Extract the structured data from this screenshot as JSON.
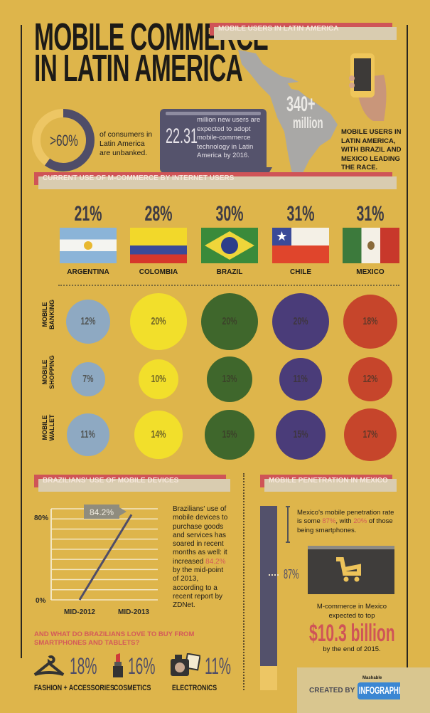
{
  "title": {
    "line1": "MOBILE COMMERCE",
    "line2": "IN LATIN AMERICA"
  },
  "colors": {
    "background": "#deb54b",
    "accent_red": "#cf5457",
    "dark": "#4f4d68"
  },
  "mobile_users": {
    "header": "MOBILE USERS IN LATIN AMERICA",
    "unbanked_value": ">60%",
    "unbanked_fraction": 0.6,
    "unbanked_text": "of consumers in Latin America are unbanked.",
    "new_users_value": "22.31",
    "new_users_text": "million new users are expected to adopt mobile-commerce technology in Latin America by 2016.",
    "map_value": "340+",
    "map_unit": "million",
    "side_text": "MOBILE USERS IN LATIN AMERICA, WITH BRAZIL AND MEXICO LEADING THE RACE."
  },
  "current_use": {
    "header": "CURRENT USE OF M-COMMERCE BY INTERNET USERS",
    "countries": [
      {
        "name": "ARGENTINA",
        "pct": "21%",
        "banking": "12%",
        "shopping": "7%",
        "wallet": "11%",
        "color": "#8ea9c2"
      },
      {
        "name": "COLOMBIA",
        "pct": "28%",
        "banking": "20%",
        "shopping": "10%",
        "wallet": "14%",
        "color": "#f2df2b"
      },
      {
        "name": "BRAZIL",
        "pct": "30%",
        "banking": "20%",
        "shopping": "13%",
        "wallet": "15%",
        "color": "#3f672c"
      },
      {
        "name": "CHILE",
        "pct": "31%",
        "banking": "20%",
        "shopping": "11%",
        "wallet": "15%",
        "color": "#4a3c79"
      },
      {
        "name": "MEXICO",
        "pct": "31%",
        "banking": "18%",
        "shopping": "12%",
        "wallet": "17%",
        "color": "#c6452b"
      }
    ],
    "rows": [
      {
        "line1": "MOBILE",
        "line2": "BANKING"
      },
      {
        "line1": "MOBILE",
        "line2": "SHOPPING"
      },
      {
        "line1": "MOBILE",
        "line2": "WALLET"
      }
    ]
  },
  "brazil": {
    "header": "BRAZILIANS' USE OF MOBILE DEVICES",
    "callout": "84.2%",
    "text_before": "Brazilians' use of mobile devices to purchase goods and services has soared in recent months as well: it increased ",
    "text_highlight": "84.2%",
    "text_after": " by the mid-point of 2013, according to a recent report by ZDNet.",
    "question": "AND WHAT DO BRAZILIANS LOVE TO BUY FROM SMARTPHONES AND TABLETS?",
    "categories": [
      {
        "label": "FASHION + ACCESSORIES",
        "pct": "18%"
      },
      {
        "label": "COSMETICS",
        "pct": "16%"
      },
      {
        "label": "ELECTRONICS",
        "pct": "11%"
      }
    ]
  },
  "chart_data": {
    "type": "line",
    "x": [
      "MID-2012",
      "MID-2013"
    ],
    "values": [
      0,
      84.2
    ],
    "ytick_labels": [
      "80%",
      "0%"
    ],
    "ylim": [
      0,
      90
    ],
    "annotation": "84.2%"
  },
  "mexico": {
    "header": "MOBILE PENETRATION IN MEXICO",
    "penetration_fraction": 0.87,
    "bar_label": "87%",
    "text_a": "Mexico's mobile penetration rate is some ",
    "text_b": "87%",
    "text_c": ", with ",
    "text_d": "20%",
    "text_e": " of those being smartphones.",
    "mcommerce_line1": "M-commerce in Mexico",
    "mcommerce_line2": "expected to top",
    "amount": "$10.3 billion",
    "mcommerce_line3": "by the end of 2015."
  },
  "credit": {
    "created_by": "CREATED BY",
    "brand_small": "Mashable",
    "brand": "INFOGRAPHICS"
  }
}
